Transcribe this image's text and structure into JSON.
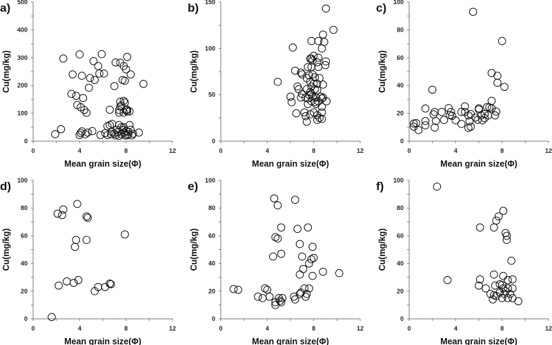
{
  "chart_data": [
    {
      "panel": "a)",
      "type": "scatter",
      "xlabel": "Mean grain size(Φ)",
      "ylabel": "Cu(mg/kg)",
      "xlim": [
        0,
        12
      ],
      "ylim": [
        0,
        500
      ],
      "xticks": [
        0,
        4,
        8,
        12
      ],
      "yticks": [
        0,
        100,
        200,
        300,
        400,
        500
      ],
      "grid": false,
      "points": [
        [
          1.9,
          25
        ],
        [
          2.4,
          43
        ],
        [
          2.6,
          297
        ],
        [
          4.0,
          312
        ],
        [
          3.4,
          240
        ],
        [
          3.3,
          170
        ],
        [
          3.7,
          163
        ],
        [
          4.3,
          155
        ],
        [
          3.8,
          130
        ],
        [
          4.1,
          122
        ],
        [
          4.4,
          112
        ],
        [
          4.6,
          102
        ],
        [
          4.2,
          235
        ],
        [
          4.9,
          227
        ],
        [
          5.3,
          220
        ],
        [
          4.8,
          192
        ],
        [
          5.2,
          288
        ],
        [
          5.6,
          270
        ],
        [
          5.7,
          243
        ],
        [
          5.9,
          313
        ],
        [
          6.1,
          243
        ],
        [
          7.1,
          283
        ],
        [
          7.0,
          198
        ],
        [
          7.5,
          282
        ],
        [
          7.8,
          270
        ],
        [
          8.0,
          258
        ],
        [
          8.1,
          303
        ],
        [
          8.4,
          240
        ],
        [
          7.7,
          220
        ],
        [
          7.9,
          217
        ],
        [
          9.5,
          206
        ],
        [
          6.6,
          113
        ],
        [
          7.5,
          142
        ],
        [
          7.8,
          145
        ],
        [
          7.9,
          139
        ],
        [
          7.5,
          124
        ],
        [
          7.6,
          128
        ],
        [
          7.4,
          103
        ],
        [
          7.4,
          112
        ],
        [
          7.8,
          103
        ],
        [
          8.0,
          112
        ],
        [
          8.1,
          107
        ],
        [
          8.3,
          107
        ],
        [
          8.1,
          113
        ],
        [
          4.1,
          29
        ],
        [
          4.2,
          35
        ],
        [
          4.0,
          22
        ],
        [
          4.5,
          25
        ],
        [
          4.7,
          31
        ],
        [
          5.1,
          36
        ],
        [
          5.8,
          22
        ],
        [
          6.2,
          29
        ],
        [
          6.4,
          54
        ],
        [
          6.6,
          58
        ],
        [
          6.8,
          62
        ],
        [
          6.4,
          22
        ],
        [
          6.7,
          25
        ],
        [
          7.0,
          27
        ],
        [
          7.1,
          21
        ],
        [
          7.3,
          33
        ],
        [
          7.4,
          58
        ],
        [
          7.6,
          50
        ],
        [
          7.8,
          50
        ],
        [
          7.6,
          25
        ],
        [
          7.8,
          31
        ],
        [
          8.0,
          37
        ],
        [
          8.2,
          33
        ],
        [
          8.3,
          58
        ],
        [
          8.4,
          41
        ],
        [
          8.5,
          21
        ],
        [
          8.6,
          27
        ],
        [
          9.1,
          31
        ],
        [
          7.4,
          19
        ],
        [
          7.9,
          21
        ],
        [
          8.1,
          21
        ],
        [
          8.2,
          25
        ],
        [
          6.8,
          33
        ],
        [
          7.2,
          41
        ],
        [
          7.7,
          41
        ]
      ]
    },
    {
      "panel": "b)",
      "type": "scatter",
      "xlabel": "Mean grain size(Φ)",
      "ylabel": "Cu(mg/kg)",
      "xlim": [
        0,
        12
      ],
      "ylim": [
        0,
        150
      ],
      "xticks": [
        0,
        4,
        8,
        12
      ],
      "yticks": [
        0,
        50,
        100,
        150
      ],
      "grid": false,
      "points": [
        [
          4.9,
          64
        ],
        [
          9.05,
          143
        ],
        [
          9.7,
          120
        ],
        [
          8.8,
          115
        ],
        [
          8.9,
          107
        ],
        [
          8.4,
          108
        ],
        [
          7.8,
          108
        ],
        [
          8.7,
          100
        ],
        [
          6.2,
          101
        ],
        [
          9.05,
          86
        ],
        [
          9.0,
          82
        ],
        [
          8.0,
          92
        ],
        [
          7.8,
          89
        ],
        [
          8.4,
          90
        ],
        [
          8.3,
          85
        ],
        [
          8.4,
          80
        ],
        [
          7.5,
          80
        ],
        [
          6.4,
          76
        ],
        [
          6.9,
          74
        ],
        [
          7.0,
          72
        ],
        [
          6.6,
          59
        ],
        [
          6.7,
          56
        ],
        [
          6.0,
          48
        ],
        [
          6.1,
          42
        ],
        [
          6.5,
          30
        ],
        [
          7.2,
          31
        ],
        [
          7.3,
          27
        ],
        [
          7.4,
          21
        ],
        [
          8.8,
          61
        ],
        [
          9.1,
          43
        ],
        [
          7.4,
          68
        ],
        [
          7.6,
          71
        ],
        [
          7.9,
          72
        ],
        [
          8.1,
          69
        ],
        [
          7.7,
          64
        ],
        [
          8.0,
          62
        ],
        [
          8.3,
          62
        ],
        [
          8.5,
          68
        ],
        [
          7.8,
          59
        ],
        [
          8.1,
          56
        ],
        [
          8.3,
          55
        ],
        [
          7.7,
          53
        ],
        [
          7.8,
          51
        ],
        [
          7.6,
          50
        ],
        [
          7.9,
          48
        ],
        [
          8.2,
          47
        ],
        [
          8.6,
          48
        ],
        [
          8.8,
          47
        ],
        [
          7.5,
          46
        ],
        [
          7.8,
          43
        ],
        [
          8.1,
          42
        ],
        [
          8.4,
          43
        ],
        [
          8.7,
          46
        ],
        [
          7.3,
          47
        ],
        [
          6.9,
          47
        ],
        [
          7.0,
          51
        ],
        [
          7.5,
          40
        ],
        [
          8.2,
          40
        ],
        [
          8.7,
          37
        ],
        [
          7.7,
          29
        ],
        [
          8.0,
          31
        ],
        [
          8.3,
          28
        ],
        [
          8.5,
          25
        ],
        [
          8.7,
          24
        ],
        [
          8.3,
          23
        ],
        [
          8.7,
          31
        ],
        [
          7.4,
          56
        ],
        [
          7.8,
          80
        ],
        [
          7.9,
          87
        ],
        [
          7.7,
          89
        ]
      ]
    },
    {
      "panel": "c)",
      "type": "scatter",
      "xlabel": "Mean grain size(Φ)",
      "ylabel": "Cu(mg/kg)",
      "xlim": [
        0,
        12
      ],
      "ylim": [
        0,
        100
      ],
      "xticks": [
        0,
        4,
        8,
        12
      ],
      "yticks": [
        0,
        20,
        40,
        60,
        80,
        100
      ],
      "grid": false,
      "points": [
        [
          5.5,
          93
        ],
        [
          8.0,
          72
        ],
        [
          2.0,
          37
        ],
        [
          7.1,
          49
        ],
        [
          7.6,
          47
        ],
        [
          7.6,
          42
        ],
        [
          8.2,
          39
        ],
        [
          7.1,
          29
        ],
        [
          0.4,
          12.7
        ],
        [
          0.4,
          10.4
        ],
        [
          0.6,
          13
        ],
        [
          0.8,
          8
        ],
        [
          1.4,
          23.5
        ],
        [
          1.4,
          14.5
        ],
        [
          1.4,
          11.4
        ],
        [
          2.1,
          19.3
        ],
        [
          2.2,
          21
        ],
        [
          2.3,
          14.5
        ],
        [
          2.2,
          9.8
        ],
        [
          2.8,
          21
        ],
        [
          3.0,
          15.2
        ],
        [
          3.4,
          23.8
        ],
        [
          3.6,
          21
        ],
        [
          3.5,
          18.7
        ],
        [
          3.7,
          18.2
        ],
        [
          4.0,
          15
        ],
        [
          4.5,
          12.4
        ],
        [
          4.5,
          21
        ],
        [
          4.8,
          25
        ],
        [
          4.8,
          21
        ],
        [
          5.1,
          18.5
        ],
        [
          5.3,
          19.5
        ],
        [
          5.1,
          9.6
        ],
        [
          5.3,
          10.4
        ],
        [
          5.2,
          14.4
        ],
        [
          5.7,
          17
        ],
        [
          6.0,
          23.6
        ],
        [
          6.0,
          22.8
        ],
        [
          5.9,
          15.4
        ],
        [
          6.2,
          18.5
        ],
        [
          6.3,
          15
        ],
        [
          6.5,
          19.5
        ],
        [
          6.5,
          16.5
        ],
        [
          6.7,
          24.5
        ],
        [
          6.9,
          24.3
        ],
        [
          7.1,
          23.6
        ],
        [
          6.8,
          18.5
        ],
        [
          7.4,
          18.5
        ],
        [
          7.5,
          21.3
        ]
      ]
    },
    {
      "panel": "d)",
      "type": "scatter",
      "xlabel": "Mean grain size(Φ)",
      "ylabel": "Cu(mg/kg)",
      "xlim": [
        0,
        12
      ],
      "ylim": [
        0,
        100
      ],
      "xticks": [
        0,
        4,
        8,
        12
      ],
      "yticks": [
        0,
        20,
        40,
        60,
        80,
        100
      ],
      "grid": false,
      "points": [
        [
          1.6,
          1.3
        ],
        [
          2.1,
          76
        ],
        [
          2.6,
          79
        ],
        [
          2.5,
          75
        ],
        [
          3.8,
          83
        ],
        [
          4.6,
          74
        ],
        [
          4.7,
          73
        ],
        [
          3.7,
          57
        ],
        [
          3.6,
          52
        ],
        [
          4.6,
          57
        ],
        [
          7.9,
          61
        ],
        [
          2.2,
          24
        ],
        [
          2.9,
          27
        ],
        [
          3.5,
          26
        ],
        [
          3.9,
          28
        ],
        [
          5.3,
          20
        ],
        [
          5.6,
          23
        ],
        [
          6.2,
          23
        ],
        [
          6.6,
          25.5
        ],
        [
          6.7,
          25
        ]
      ]
    },
    {
      "panel": "e)",
      "type": "scatter",
      "xlabel": "Mean grain size(Φ)",
      "ylabel": "Cu(mg/kg)",
      "xlim": [
        0,
        12
      ],
      "ylim": [
        0,
        100
      ],
      "xticks": [
        0,
        4,
        8,
        12
      ],
      "yticks": [
        0,
        20,
        40,
        60,
        80,
        100
      ],
      "grid": false,
      "points": [
        [
          4.6,
          87
        ],
        [
          6.4,
          86
        ],
        [
          4.9,
          82
        ],
        [
          5.2,
          66
        ],
        [
          6.6,
          65
        ],
        [
          7.5,
          66
        ],
        [
          4.7,
          59
        ],
        [
          4.9,
          58
        ],
        [
          6.8,
          54
        ],
        [
          7.9,
          52
        ],
        [
          4.5,
          45
        ],
        [
          5.2,
          47
        ],
        [
          7.0,
          45
        ],
        [
          8.0,
          44
        ],
        [
          7.8,
          43
        ],
        [
          7.6,
          40
        ],
        [
          7.1,
          36
        ],
        [
          6.8,
          32
        ],
        [
          7.9,
          31
        ],
        [
          8.8,
          34
        ],
        [
          10.2,
          33
        ],
        [
          1.1,
          21.5
        ],
        [
          1.5,
          21
        ],
        [
          3.8,
          22
        ],
        [
          4.0,
          21
        ],
        [
          4.2,
          16
        ],
        [
          3.2,
          16
        ],
        [
          3.6,
          15
        ],
        [
          4.7,
          12
        ],
        [
          4.7,
          10
        ],
        [
          5.0,
          15
        ],
        [
          5.3,
          15
        ],
        [
          5.1,
          13
        ],
        [
          5.2,
          12
        ],
        [
          6.3,
          16
        ],
        [
          6.4,
          14
        ],
        [
          6.8,
          18
        ],
        [
          6.9,
          19
        ],
        [
          7.2,
          22
        ],
        [
          7.6,
          22
        ],
        [
          7.4,
          18
        ],
        [
          7.3,
          16
        ]
      ]
    },
    {
      "panel": "f)",
      "type": "scatter",
      "xlabel": "Mean grain size(Φ)",
      "ylabel": "Cu(mg/kg)",
      "xlim": [
        0,
        12
      ],
      "ylim": [
        0,
        100
      ],
      "xticks": [
        0,
        4,
        8,
        12
      ],
      "yticks": [
        0,
        20,
        40,
        60,
        80,
        100
      ],
      "grid": false,
      "points": [
        [
          2.4,
          95.5
        ],
        [
          3.3,
          28
        ],
        [
          6.1,
          66
        ],
        [
          7.3,
          66
        ],
        [
          7.5,
          71
        ],
        [
          7.7,
          74
        ],
        [
          8.1,
          78
        ],
        [
          8.3,
          62
        ],
        [
          8.4,
          60
        ],
        [
          8.4,
          57
        ],
        [
          8.8,
          42
        ],
        [
          6.0,
          24
        ],
        [
          6.1,
          28.5
        ],
        [
          6.6,
          22
        ],
        [
          7.3,
          32
        ],
        [
          8.1,
          31
        ],
        [
          8.5,
          28
        ],
        [
          8.9,
          28.5
        ],
        [
          7.4,
          24
        ],
        [
          7.8,
          25
        ],
        [
          8.0,
          24.5
        ],
        [
          8.1,
          22
        ],
        [
          8.5,
          22
        ],
        [
          8.9,
          22
        ],
        [
          7.0,
          18
        ],
        [
          7.2,
          14
        ],
        [
          7.5,
          16.5
        ],
        [
          7.8,
          19
        ],
        [
          8.0,
          15
        ],
        [
          8.2,
          18
        ],
        [
          8.5,
          15
        ],
        [
          8.7,
          18
        ],
        [
          8.9,
          15
        ],
        [
          9.4,
          12.7
        ],
        [
          7.3,
          17
        ],
        [
          8.3,
          20
        ]
      ]
    }
  ]
}
